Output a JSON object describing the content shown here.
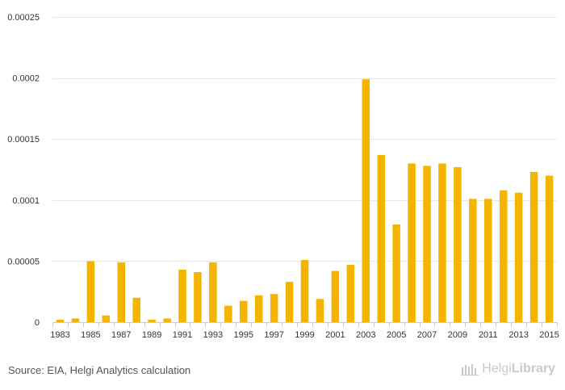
{
  "chart_data": {
    "type": "bar",
    "categories": [
      "1983",
      "1984",
      "1985",
      "1986",
      "1987",
      "1988",
      "1989",
      "1990",
      "1991",
      "1992",
      "1993",
      "1994",
      "1995",
      "1996",
      "1997",
      "1998",
      "1999",
      "2000",
      "2001",
      "2002",
      "2003",
      "2004",
      "2005",
      "2006",
      "2007",
      "2008",
      "2009",
      "2010",
      "2011",
      "2012",
      "2013",
      "2014",
      "2015"
    ],
    "tick_labels": [
      "1983",
      "1985",
      "1987",
      "1989",
      "1991",
      "1993",
      "1995",
      "1997",
      "1999",
      "2001",
      "2003",
      "2005",
      "2007",
      "2009",
      "2011",
      "2013",
      "2015"
    ],
    "values": [
      2e-06,
      3e-06,
      5e-05,
      5.5e-06,
      4.9e-05,
      2e-05,
      2e-06,
      3e-06,
      4.3e-05,
      4.1e-05,
      4.9e-05,
      1.35e-05,
      1.75e-05,
      2.2e-05,
      2.3e-05,
      3.3e-05,
      5.1e-05,
      1.9e-05,
      4.2e-05,
      4.7e-05,
      0.000199,
      0.000137,
      8e-05,
      0.00013,
      0.000128,
      0.00013,
      0.000127,
      0.000101,
      0.000101,
      0.000108,
      0.000106,
      0.000123,
      0.00012
    ],
    "ylim": [
      0,
      0.00025
    ],
    "y_ticks": [
      0,
      5e-05,
      0.0001,
      0.00015,
      0.0002,
      0.00025
    ],
    "y_tick_labels": [
      "0",
      "0.00005",
      "0.0001",
      "0.00015",
      "0.0002",
      "0.00025"
    ],
    "grid": true,
    "bar_color": "#f5b400",
    "title": "",
    "xlabel": "",
    "ylabel": ""
  },
  "footer": {
    "source": "Source: EIA, Helgi Analytics calculation",
    "brand_part1": "Helgi",
    "brand_part2": "Library",
    "brand_color": "#c9c9c9"
  }
}
